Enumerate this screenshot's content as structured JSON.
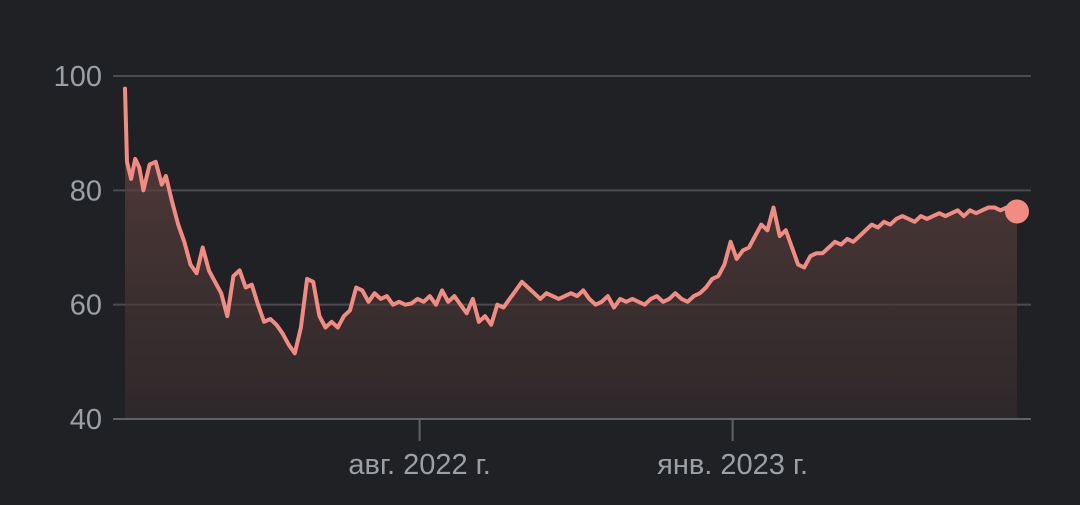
{
  "colors": {
    "background": "#202124",
    "line": "#f28b82",
    "grid": "#4a4c50",
    "text": "#9aa0a6"
  },
  "chart_data": {
    "type": "area",
    "title": "",
    "xlabel": "",
    "ylabel": "",
    "ylim": [
      40,
      100
    ],
    "xlim": [
      "2022-03-10",
      "2023-05-20"
    ],
    "grid": true,
    "y_ticks": [
      {
        "value": 40,
        "label": "40"
      },
      {
        "value": 60,
        "label": "60"
      },
      {
        "value": 80,
        "label": "80"
      },
      {
        "value": 100,
        "label": "100"
      }
    ],
    "x_ticks": [
      {
        "value": "2022-08-01",
        "label": "авг. 2022 г."
      },
      {
        "value": "2023-01-01",
        "label": "янв. 2023 г."
      }
    ],
    "series": [
      {
        "x": [
          "2022-03-10",
          "2022-03-11",
          "2022-03-13",
          "2022-03-15",
          "2022-03-17",
          "2022-03-19",
          "2022-03-22",
          "2022-03-25",
          "2022-03-28",
          "2022-03-30",
          "2022-04-02",
          "2022-04-05",
          "2022-04-08",
          "2022-04-11",
          "2022-04-14",
          "2022-04-17",
          "2022-04-20",
          "2022-04-23",
          "2022-04-26",
          "2022-04-29",
          "2022-05-02",
          "2022-05-05",
          "2022-05-08",
          "2022-05-11",
          "2022-05-14",
          "2022-05-17",
          "2022-05-20",
          "2022-05-23",
          "2022-05-26",
          "2022-05-29",
          "2022-06-01",
          "2022-06-04",
          "2022-06-07",
          "2022-06-10",
          "2022-06-13",
          "2022-06-16",
          "2022-06-19",
          "2022-06-22",
          "2022-06-25",
          "2022-06-28",
          "2022-07-01",
          "2022-07-04",
          "2022-07-07",
          "2022-07-10",
          "2022-07-13",
          "2022-07-16",
          "2022-07-19",
          "2022-07-22",
          "2022-07-25",
          "2022-07-28",
          "2022-07-31",
          "2022-08-03",
          "2022-08-06",
          "2022-08-09",
          "2022-08-12",
          "2022-08-15",
          "2022-08-18",
          "2022-08-21",
          "2022-08-24",
          "2022-08-27",
          "2022-08-30",
          "2022-09-02",
          "2022-09-05",
          "2022-09-08",
          "2022-09-11",
          "2022-09-14",
          "2022-09-17",
          "2022-09-20",
          "2022-09-23",
          "2022-09-26",
          "2022-09-29",
          "2022-10-02",
          "2022-10-05",
          "2022-10-08",
          "2022-10-11",
          "2022-10-14",
          "2022-10-17",
          "2022-10-20",
          "2022-10-23",
          "2022-10-26",
          "2022-10-29",
          "2022-11-01",
          "2022-11-04",
          "2022-11-07",
          "2022-11-10",
          "2022-11-13",
          "2022-11-16",
          "2022-11-19",
          "2022-11-22",
          "2022-11-25",
          "2022-11-28",
          "2022-12-01",
          "2022-12-04",
          "2022-12-07",
          "2022-12-10",
          "2022-12-13",
          "2022-12-16",
          "2022-12-19",
          "2022-12-22",
          "2022-12-25",
          "2022-12-28",
          "2022-12-31",
          "2023-01-03",
          "2023-01-06",
          "2023-01-09",
          "2023-01-12",
          "2023-01-15",
          "2023-01-18",
          "2023-01-21",
          "2023-01-24",
          "2023-01-27",
          "2023-01-30",
          "2023-02-02",
          "2023-02-05",
          "2023-02-08",
          "2023-02-11",
          "2023-02-14",
          "2023-02-17",
          "2023-02-20",
          "2023-02-23",
          "2023-02-26",
          "2023-03-01",
          "2023-03-04",
          "2023-03-07",
          "2023-03-10",
          "2023-03-13",
          "2023-03-16",
          "2023-03-19",
          "2023-03-22",
          "2023-03-25",
          "2023-03-28",
          "2023-03-31",
          "2023-04-03",
          "2023-04-06",
          "2023-04-09",
          "2023-04-12",
          "2023-04-15",
          "2023-04-18",
          "2023-04-21",
          "2023-04-24",
          "2023-04-27",
          "2023-04-30",
          "2023-05-03",
          "2023-05-06",
          "2023-05-09",
          "2023-05-12",
          "2023-05-15",
          "2023-05-18",
          "2023-05-20"
        ],
        "y": [
          97.8,
          85.0,
          82.0,
          85.5,
          84.0,
          80.0,
          84.5,
          85.0,
          81.0,
          82.5,
          78.0,
          74.0,
          71.0,
          67.0,
          65.5,
          70.0,
          66.0,
          64.0,
          62.0,
          58.0,
          65.0,
          66.0,
          63.0,
          63.5,
          60.0,
          57.0,
          57.5,
          56.5,
          55.0,
          53.0,
          51.5,
          56.0,
          64.5,
          64.0,
          58.0,
          56.0,
          57.0,
          56.0,
          58.0,
          59.0,
          63.0,
          62.5,
          60.5,
          62.0,
          61.0,
          61.5,
          60.0,
          60.5,
          60.0,
          60.2,
          61.0,
          60.5,
          61.5,
          60.0,
          62.5,
          60.5,
          61.5,
          60.0,
          58.5,
          61.0,
          57.0,
          58.0,
          56.5,
          60.0,
          59.5,
          61.0,
          62.5,
          64.0,
          63.0,
          62.0,
          61.0,
          62.0,
          61.5,
          61.0,
          61.5,
          62.0,
          61.5,
          62.5,
          61.0,
          60.0,
          60.5,
          61.5,
          59.5,
          61.0,
          60.5,
          61.0,
          60.5,
          60.0,
          61.0,
          61.5,
          60.5,
          61.0,
          62.0,
          61.0,
          60.5,
          61.5,
          62.0,
          63.0,
          64.5,
          65.0,
          67.0,
          71.0,
          68.0,
          69.5,
          70.0,
          72.0,
          74.0,
          73.0,
          77.0,
          72.0,
          73.0,
          70.0,
          67.0,
          66.5,
          68.5,
          69.0,
          69.0,
          70.0,
          71.0,
          70.5,
          71.5,
          71.0,
          72.0,
          73.0,
          74.0,
          73.5,
          74.5,
          74.0,
          75.0,
          75.5,
          75.0,
          74.5,
          75.5,
          75.0,
          75.5,
          76.0,
          75.5,
          76.0,
          76.5,
          75.5,
          76.5,
          76.0,
          76.5,
          77.0,
          77.0,
          76.5,
          77.0,
          77.0,
          76.3
        ],
        "end_marker": true
      }
    ]
  }
}
